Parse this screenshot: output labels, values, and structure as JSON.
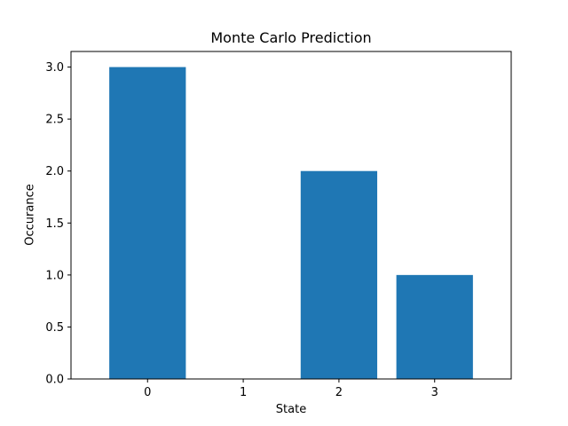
{
  "chart_data": {
    "type": "bar",
    "title": "Monte Carlo Prediction",
    "xlabel": "State",
    "ylabel": "Occurance",
    "categories": [
      "0",
      "1",
      "2",
      "3"
    ],
    "values": [
      3,
      0,
      2,
      1
    ],
    "ylim": [
      0,
      3.15
    ],
    "yticks": [
      "0.0",
      "0.5",
      "1.0",
      "1.5",
      "2.0",
      "2.5",
      "3.0"
    ],
    "grid": false,
    "legend": "none",
    "bar_color": "#1f77b4"
  }
}
